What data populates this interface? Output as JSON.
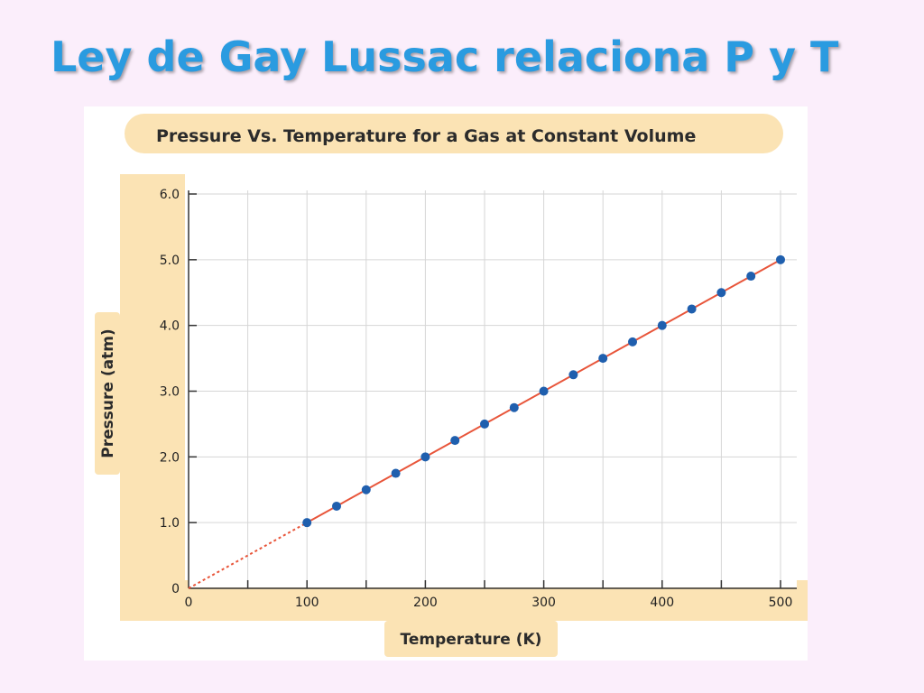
{
  "slide": {
    "title": "Ley de Gay Lussac relaciona P y T"
  },
  "colors": {
    "background": "#fbeefb",
    "title": "#2a9be0",
    "panel": "#fbe3b4",
    "grid": "#d6d6d6",
    "line": "#e8553a",
    "points": "#1f5fae"
  },
  "chart_data": {
    "type": "scatter",
    "title": "Pressure Vs. Temperature for a Gas at Constant Volume",
    "xlabel": "Temperature (K)",
    "ylabel": "Pressure (atm)",
    "xlim": [
      0,
      500
    ],
    "ylim": [
      0,
      6.0
    ],
    "x_ticks": [
      0,
      100,
      200,
      300,
      400,
      500
    ],
    "x_tick_labels": [
      "0",
      "100",
      "200",
      "300",
      "400",
      "500"
    ],
    "y_ticks": [
      0,
      1,
      2,
      3,
      4,
      5,
      6
    ],
    "y_tick_labels": [
      "0",
      "1.0",
      "2.0",
      "3.0",
      "4.0",
      "5.0",
      "6.0"
    ],
    "grid": true,
    "series": [
      {
        "x": [
          100,
          125,
          150,
          175,
          200,
          225,
          250,
          275,
          300,
          325,
          350,
          375,
          400,
          425,
          450,
          475,
          500
        ],
        "y": [
          1.0,
          1.25,
          1.5,
          1.75,
          2.0,
          2.25,
          2.5,
          2.75,
          3.0,
          3.25,
          3.5,
          3.75,
          4.0,
          4.25,
          4.5,
          4.75,
          5.0
        ]
      }
    ],
    "trend_line": {
      "solid_from": [
        100,
        1.0
      ],
      "solid_to": [
        500,
        5.0
      ],
      "dashed_from": [
        0,
        0
      ],
      "dashed_to": [
        100,
        1.0
      ]
    }
  }
}
